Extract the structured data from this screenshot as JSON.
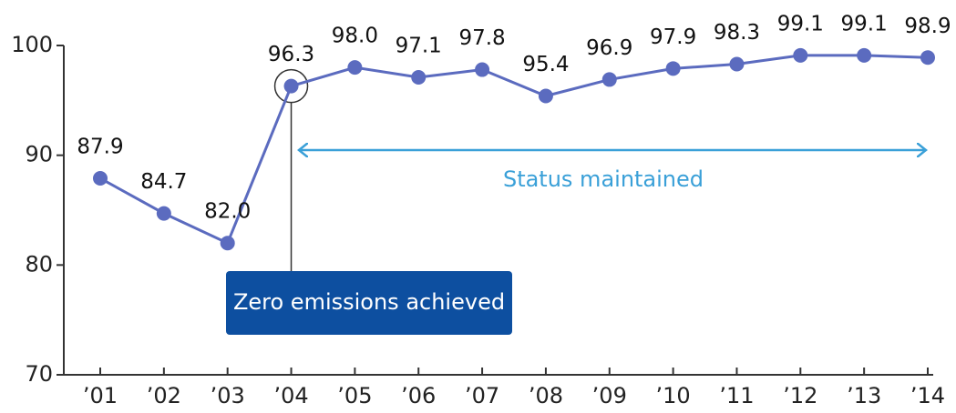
{
  "chart_data": {
    "type": "line",
    "categories": [
      "’01",
      "’02",
      "’03",
      "’04",
      "’05",
      "’06",
      "’07",
      "’08",
      "’09",
      "’10",
      "’11",
      "’12",
      "’13",
      "’14"
    ],
    "series": [
      {
        "name": null,
        "color": "#5b6bbf",
        "values": [
          87.9,
          84.7,
          82.0,
          96.3,
          98.0,
          97.1,
          97.8,
          95.4,
          96.9,
          97.9,
          98.3,
          99.1,
          99.1,
          98.9
        ],
        "value_labels": [
          "87.9",
          "84.7",
          "82.0",
          "96.3",
          "98.0",
          "97.1",
          "97.8",
          "95.4",
          "96.9",
          "97.9",
          "98.3",
          "99.1",
          "99.1",
          "98.9"
        ]
      }
    ],
    "ylim": [
      70,
      100
    ],
    "yticks": [
      70,
      80,
      90,
      100
    ],
    "annotations": {
      "milestone": "Zero emissions achieved",
      "range": "Status maintained"
    }
  }
}
